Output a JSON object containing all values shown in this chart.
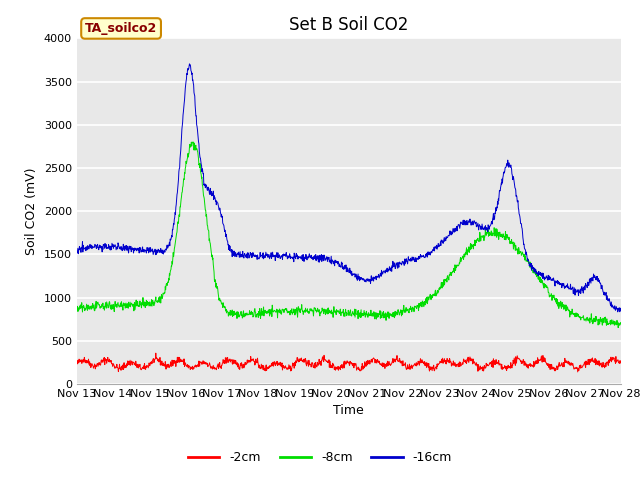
{
  "title": "Set B Soil CO2",
  "xlabel": "Time",
  "ylabel": "Soil CO2 (mV)",
  "ylim": [
    0,
    4000
  ],
  "plot_bg_color": "#e8e8e8",
  "figure_color": "#ffffff",
  "line_colors": {
    "2cm": "#ff0000",
    "8cm": "#00dd00",
    "16cm": "#0000cc"
  },
  "legend_labels": [
    "-2cm",
    "-8cm",
    "-16cm"
  ],
  "watermark_text": "TA_soilco2",
  "watermark_bg": "#ffffcc",
  "watermark_border": "#cc8800",
  "watermark_text_color": "#880000",
  "x_tick_labels": [
    "Nov 13",
    "Nov 14",
    "Nov 15",
    "Nov 16",
    "Nov 17",
    "Nov 18",
    "Nov 19",
    "Nov 20",
    "Nov 21",
    "Nov 22",
    "Nov 23",
    "Nov 24",
    "Nov 25",
    "Nov 26",
    "Nov 27",
    "Nov 28"
  ],
  "yticks": [
    0,
    500,
    1000,
    1500,
    2000,
    2500,
    3000,
    3500,
    4000
  ],
  "title_fontsize": 12,
  "axis_label_fontsize": 9,
  "tick_fontsize": 8,
  "legend_fontsize": 9
}
